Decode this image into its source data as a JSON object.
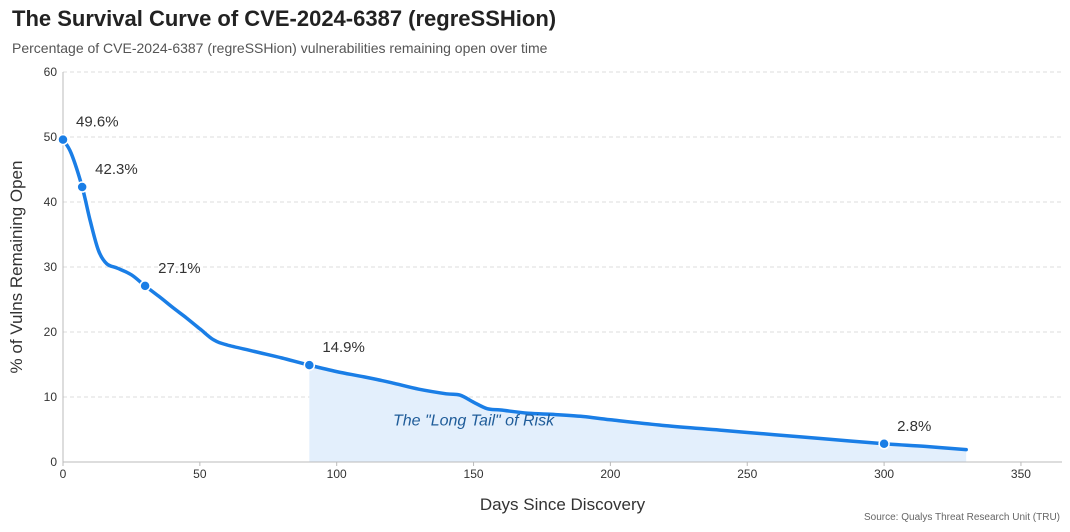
{
  "header": {
    "title": "The Survival Curve of CVE-2024-6387 (regreSSHion)",
    "subtitle": "Percentage of CVE-2024-6387 (regreSSHion) vulnerabilities remaining open over time"
  },
  "source": "Source: Qualys Threat Research Unit (TRU)",
  "chart_data": {
    "type": "line",
    "title": "The Survival Curve of CVE-2024-6387 (regreSSHion)",
    "xlabel": "Days Since Discovery",
    "ylabel": "% of Vulns Remaining Open",
    "xlim": [
      0,
      365
    ],
    "ylim": [
      0,
      60
    ],
    "xticks": [
      0,
      50,
      100,
      150,
      200,
      250,
      300,
      350
    ],
    "yticks": [
      0,
      10,
      20,
      30,
      40,
      50,
      60
    ],
    "grid": "horizontal dashed",
    "colors": {
      "line": "#1a7ee6",
      "fill": "#e3effc",
      "annotation": "#1f5c99"
    },
    "series": [
      {
        "x": [
          0,
          3,
          7,
          10,
          13,
          16,
          20,
          25,
          30,
          35,
          40,
          45,
          50,
          55,
          60,
          70,
          80,
          90,
          100,
          110,
          120,
          130,
          140,
          145,
          150,
          155,
          160,
          170,
          180,
          190,
          200,
          220,
          240,
          260,
          280,
          300,
          315,
          330
        ],
        "y": [
          49.6,
          47.5,
          42.3,
          37.0,
          32.5,
          30.5,
          29.8,
          28.8,
          27.1,
          25.5,
          23.8,
          22.2,
          20.5,
          18.8,
          18.0,
          17.0,
          16.0,
          14.9,
          13.9,
          13.1,
          12.2,
          11.2,
          10.5,
          10.3,
          9.2,
          8.2,
          8.0,
          7.5,
          7.3,
          7.0,
          6.5,
          5.6,
          4.9,
          4.2,
          3.5,
          2.8,
          2.4,
          1.9
        ]
      }
    ],
    "markers": [
      {
        "x": 0,
        "y": 49.6,
        "label": "49.6%"
      },
      {
        "x": 7,
        "y": 42.3,
        "label": "42.3%"
      },
      {
        "x": 30,
        "y": 27.1,
        "label": "27.1%"
      },
      {
        "x": 90,
        "y": 14.9,
        "label": "14.9%"
      },
      {
        "x": 300,
        "y": 2.8,
        "label": "2.8%"
      }
    ],
    "shaded_region": {
      "x_start": 90,
      "label": "The \"Long Tail\" of Risk",
      "label_x": 150,
      "label_y": 5.6
    }
  }
}
